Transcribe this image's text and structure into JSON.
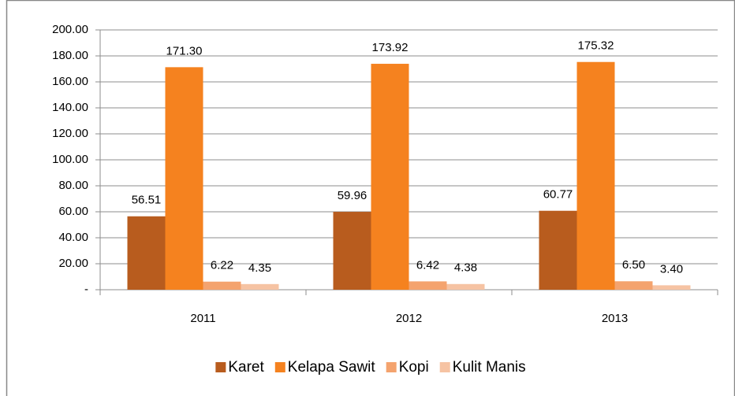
{
  "chart_data": {
    "type": "bar",
    "categories": [
      "2011",
      "2012",
      "2013"
    ],
    "series": [
      {
        "name": "Karet",
        "color": "#b85c1e",
        "values": [
          56.51,
          59.96,
          60.77
        ],
        "value_labels": [
          "56.51",
          "59.96",
          "60.77"
        ]
      },
      {
        "name": "Kelapa Sawit",
        "color": "#f5821f",
        "values": [
          171.3,
          173.92,
          175.32
        ],
        "value_labels": [
          "171.30",
          "173.92",
          "175.32"
        ]
      },
      {
        "name": "Kopi",
        "color": "#f4a36e",
        "values": [
          6.22,
          6.42,
          6.5
        ],
        "value_labels": [
          "6.22",
          "6.42",
          "6.50"
        ]
      },
      {
        "name": "Kulit Manis",
        "color": "#f6c3a3",
        "values": [
          4.35,
          4.38,
          3.4
        ],
        "value_labels": [
          "4.35",
          "4.38",
          "3.40"
        ]
      }
    ],
    "ylim": [
      0,
      200
    ],
    "yticks": [
      {
        "value": 0,
        "label": "-"
      },
      {
        "value": 20,
        "label": "20.00"
      },
      {
        "value": 40,
        "label": "40.00"
      },
      {
        "value": 60,
        "label": "60.00"
      },
      {
        "value": 80,
        "label": "80.00"
      },
      {
        "value": 100,
        "label": "100.00"
      },
      {
        "value": 120,
        "label": "120.00"
      },
      {
        "value": 140,
        "label": "140.00"
      },
      {
        "value": 160,
        "label": "160.00"
      },
      {
        "value": 180,
        "label": "180.00"
      },
      {
        "value": 200,
        "label": "200.00"
      }
    ],
    "grid": true,
    "legend": "bottom"
  }
}
